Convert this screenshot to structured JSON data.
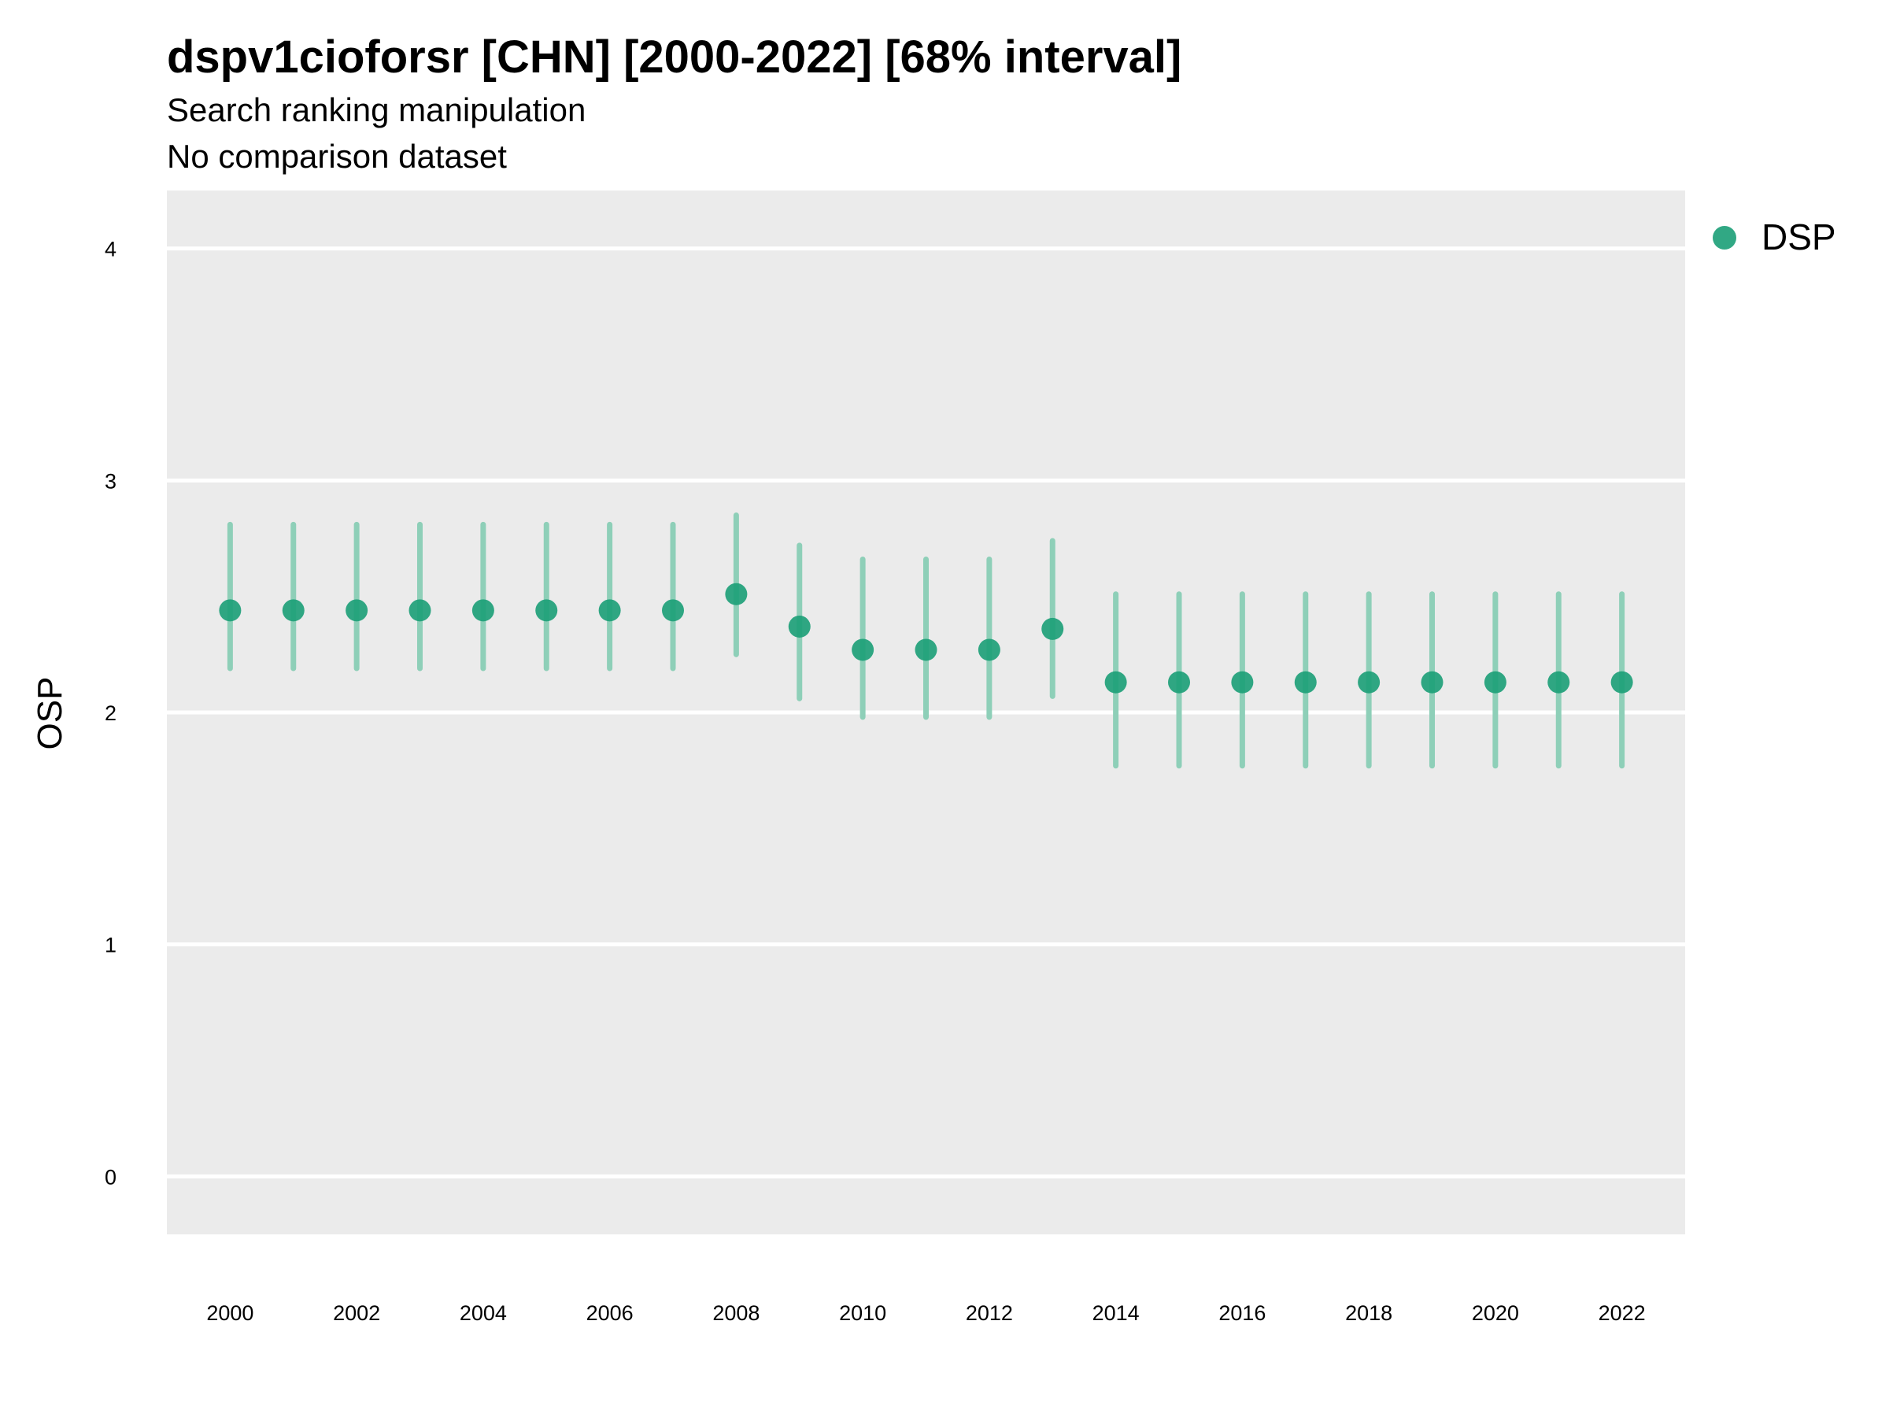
{
  "chart_data": {
    "type": "scatter",
    "title": "dspv1cioforsr [CHN] [2000-2022] [68% interval]",
    "subtitle": "Search ranking manipulation",
    "subtitle2": "No comparison dataset",
    "xlabel": "",
    "ylabel": "OSP",
    "xlim": [
      1999,
      2023
    ],
    "ylim": [
      -0.25,
      4.25
    ],
    "x_ticks": [
      "2000",
      "2002",
      "2004",
      "2006",
      "2008",
      "2010",
      "2012",
      "2014",
      "2016",
      "2018",
      "2020",
      "2022"
    ],
    "y_ticks": [
      "0",
      "1",
      "2",
      "3",
      "4"
    ],
    "grid": true,
    "legend_position": "top-right",
    "colors": {
      "panel": "#ebebeb",
      "grid": "#ffffff",
      "point": "#1b9e77",
      "interval": "#8ecfb8"
    },
    "series": [
      {
        "name": "DSP",
        "points": [
          {
            "x": 2000,
            "y": 2.44,
            "low": 2.19,
            "high": 2.81
          },
          {
            "x": 2001,
            "y": 2.44,
            "low": 2.19,
            "high": 2.81
          },
          {
            "x": 2002,
            "y": 2.44,
            "low": 2.19,
            "high": 2.81
          },
          {
            "x": 2003,
            "y": 2.44,
            "low": 2.19,
            "high": 2.81
          },
          {
            "x": 2004,
            "y": 2.44,
            "low": 2.19,
            "high": 2.81
          },
          {
            "x": 2005,
            "y": 2.44,
            "low": 2.19,
            "high": 2.81
          },
          {
            "x": 2006,
            "y": 2.44,
            "low": 2.19,
            "high": 2.81
          },
          {
            "x": 2007,
            "y": 2.44,
            "low": 2.19,
            "high": 2.81
          },
          {
            "x": 2008,
            "y": 2.51,
            "low": 2.25,
            "high": 2.85
          },
          {
            "x": 2009,
            "y": 2.37,
            "low": 2.06,
            "high": 2.72
          },
          {
            "x": 2010,
            "y": 2.27,
            "low": 1.98,
            "high": 2.66
          },
          {
            "x": 2011,
            "y": 2.27,
            "low": 1.98,
            "high": 2.66
          },
          {
            "x": 2012,
            "y": 2.27,
            "low": 1.98,
            "high": 2.66
          },
          {
            "x": 2013,
            "y": 2.36,
            "low": 2.07,
            "high": 2.74
          },
          {
            "x": 2014,
            "y": 2.13,
            "low": 1.77,
            "high": 2.51
          },
          {
            "x": 2015,
            "y": 2.13,
            "low": 1.77,
            "high": 2.51
          },
          {
            "x": 2016,
            "y": 2.13,
            "low": 1.77,
            "high": 2.51
          },
          {
            "x": 2017,
            "y": 2.13,
            "low": 1.77,
            "high": 2.51
          },
          {
            "x": 2018,
            "y": 2.13,
            "low": 1.77,
            "high": 2.51
          },
          {
            "x": 2019,
            "y": 2.13,
            "low": 1.77,
            "high": 2.51
          },
          {
            "x": 2020,
            "y": 2.13,
            "low": 1.77,
            "high": 2.51
          },
          {
            "x": 2021,
            "y": 2.13,
            "low": 1.77,
            "high": 2.51
          },
          {
            "x": 2022,
            "y": 2.13,
            "low": 1.77,
            "high": 2.51
          }
        ]
      }
    ]
  }
}
